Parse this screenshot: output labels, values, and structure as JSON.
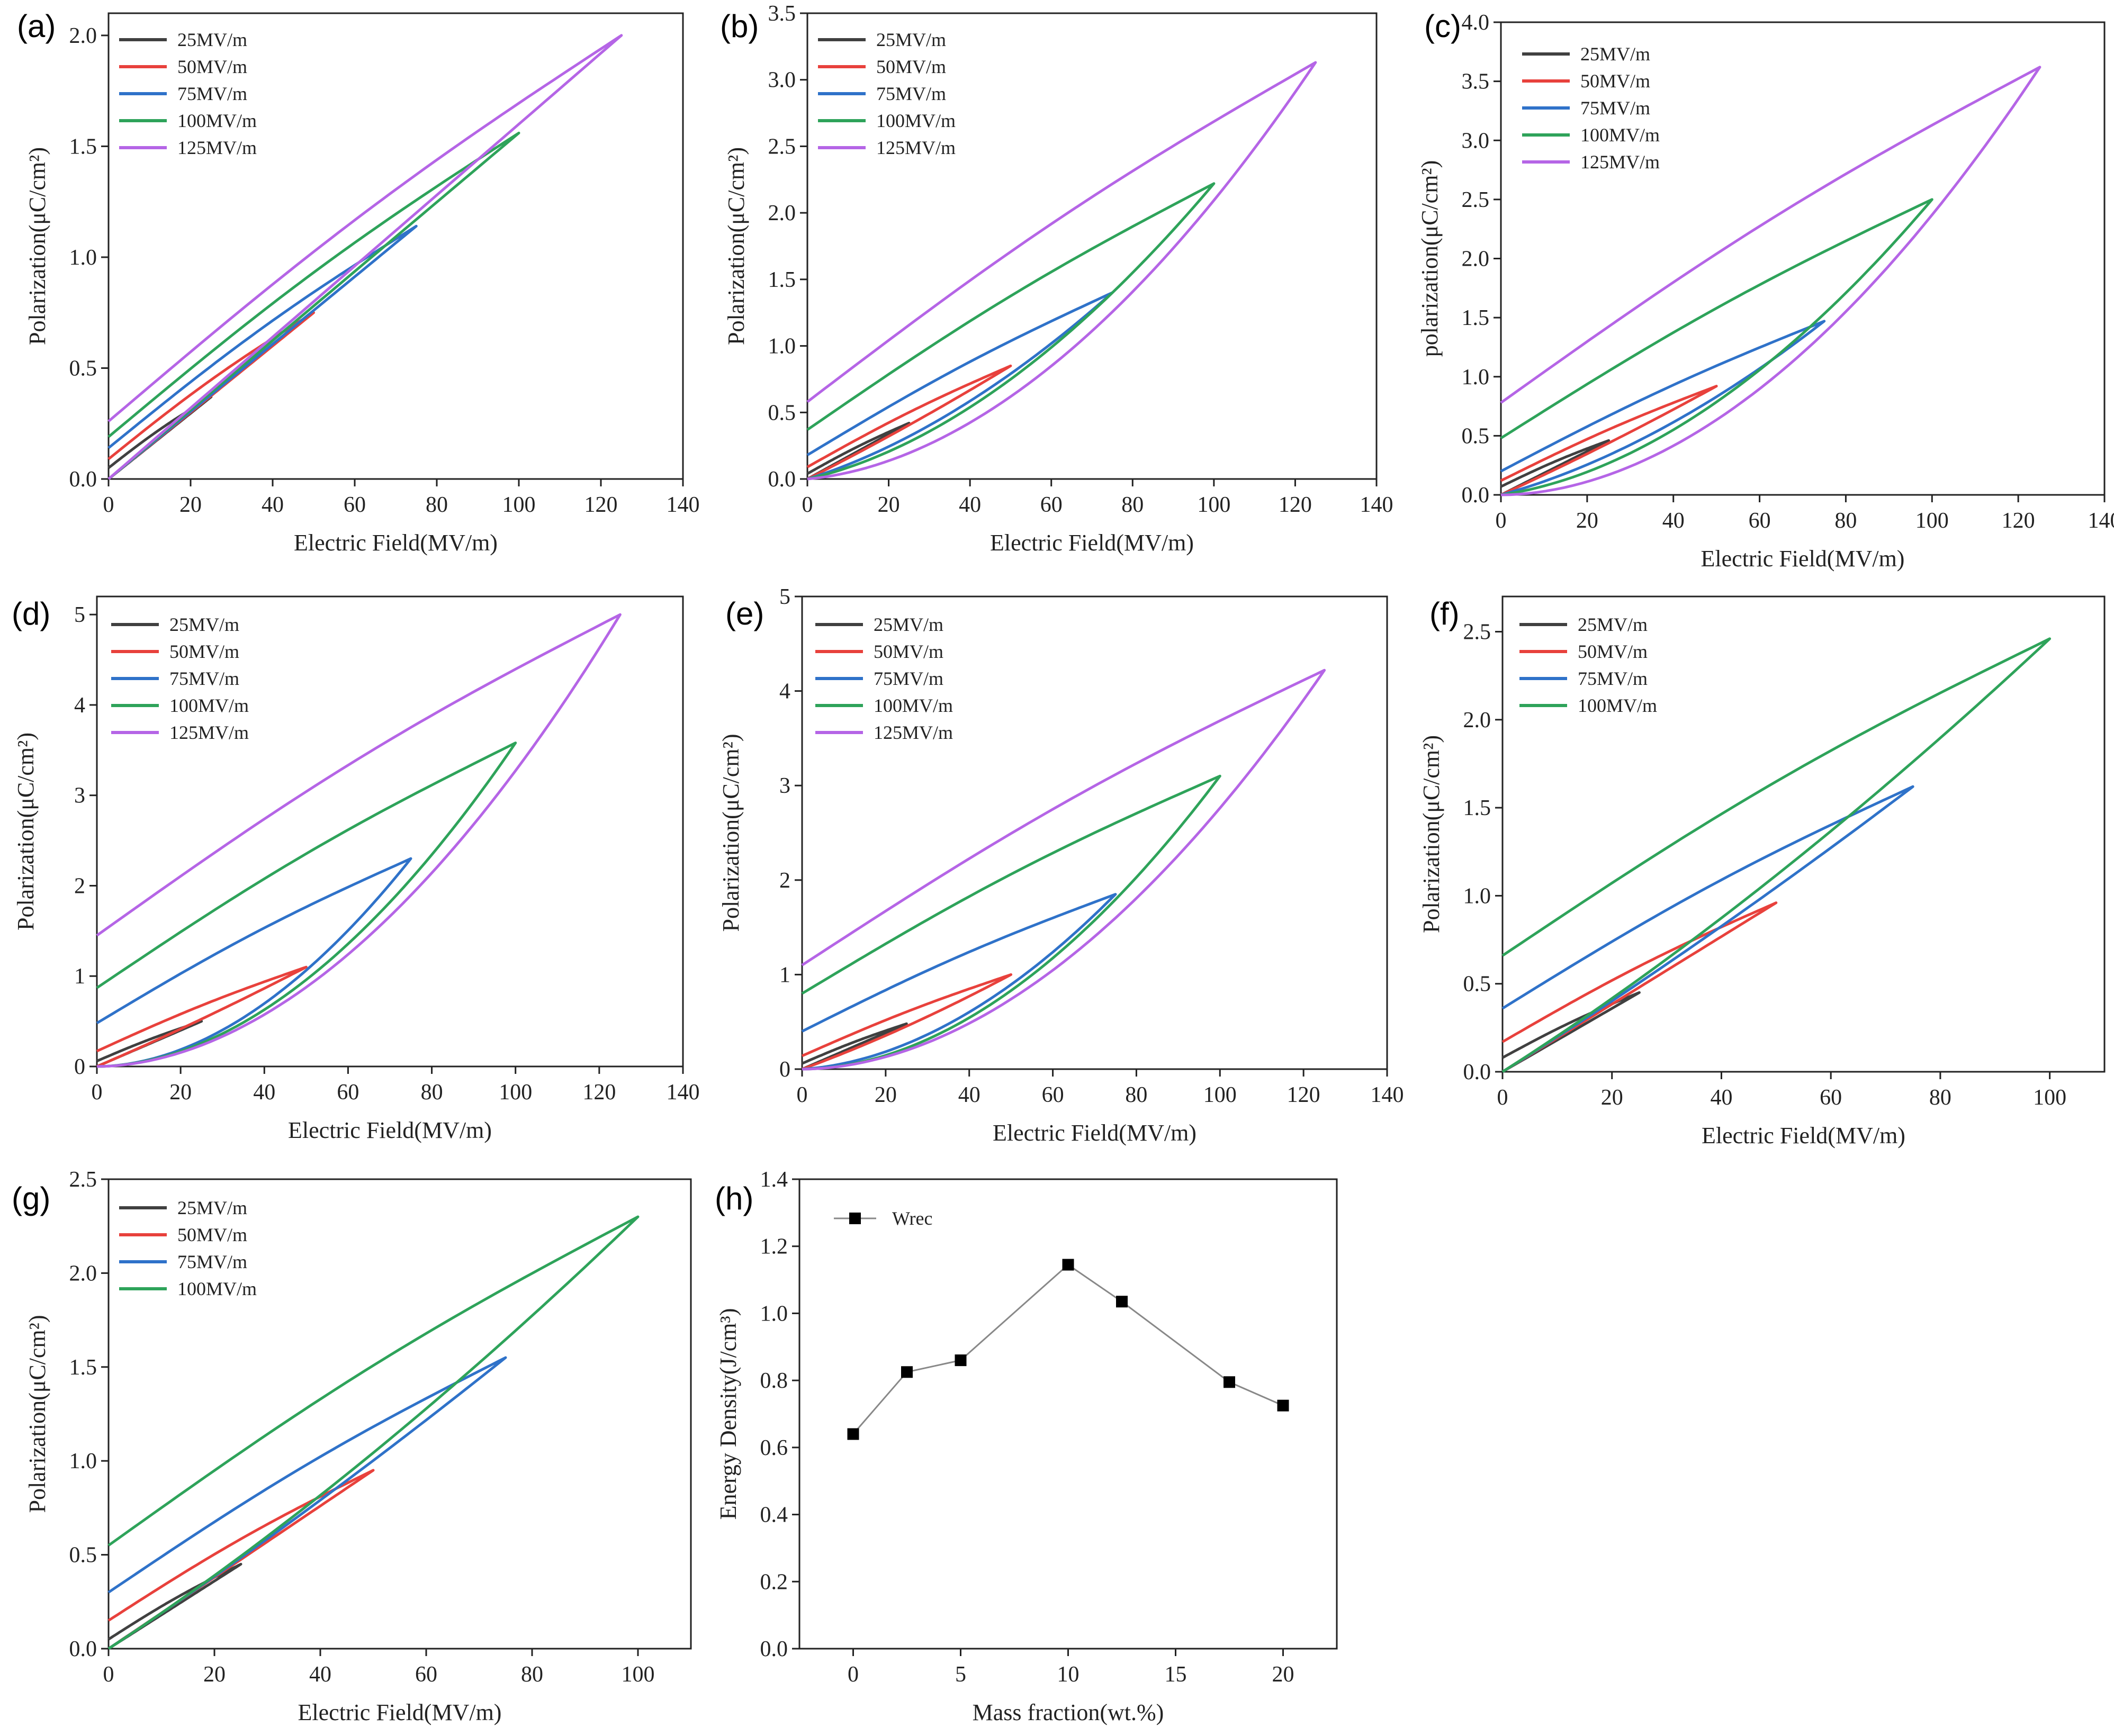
{
  "colors": {
    "25MV/m": "#404040",
    "50MV/m": "#e8413c",
    "75MV/m": "#2f72c9",
    "100MV/m": "#2ea35a",
    "125MV/m": "#b565e6",
    "energy": "#888888",
    "marker": "#000000"
  },
  "chart_data": [
    {
      "type": "line",
      "panel": "(a)",
      "xlabel": "Electric Field(MV/m)",
      "ylabel": "Polarization(μC/cm²)",
      "xlim": [
        0,
        140
      ],
      "ylim": [
        0,
        2.1
      ],
      "xticks": [
        "0",
        "20",
        "40",
        "60",
        "80",
        "100",
        "120",
        "140"
      ],
      "yticks": [
        "0.0",
        "0.5",
        "1.0",
        "1.5",
        "2.0"
      ],
      "legend": [
        "25MV/m",
        "50MV/m",
        "75MV/m",
        "100MV/m",
        "125MV/m"
      ],
      "series": [
        {
          "name": "25MV/m",
          "emax": 25,
          "pmax": 0.37,
          "pr": 0.05,
          "bend": 0.0
        },
        {
          "name": "50MV/m",
          "emax": 50,
          "pmax": 0.75,
          "pr": 0.09,
          "bend": 0.0
        },
        {
          "name": "75MV/m",
          "emax": 75,
          "pmax": 1.14,
          "pr": 0.14,
          "bend": 0.0
        },
        {
          "name": "100MV/m",
          "emax": 100,
          "pmax": 1.56,
          "pr": 0.19,
          "bend": 0.0
        },
        {
          "name": "125MV/m",
          "emax": 125,
          "pmax": 2.0,
          "pr": 0.26,
          "bend": 0.0
        }
      ]
    },
    {
      "type": "line",
      "panel": "(b)",
      "xlabel": "Electric Field(MV/m)",
      "ylabel": "Polarization(μC/cm²)",
      "xlim": [
        0,
        140
      ],
      "ylim": [
        0,
        3.5
      ],
      "xticks": [
        "0",
        "20",
        "40",
        "60",
        "80",
        "100",
        "120",
        "140"
      ],
      "yticks": [
        "0.0",
        "0.5",
        "1.0",
        "1.5",
        "2.0",
        "2.5",
        "3.0",
        "3.5"
      ],
      "legend": [
        "25MV/m",
        "50MV/m",
        "75MV/m",
        "100MV/m",
        "125MV/m"
      ],
      "series": [
        {
          "name": "25MV/m",
          "emax": 25,
          "pmax": 0.42,
          "pr": 0.04,
          "bend": 0.0
        },
        {
          "name": "50MV/m",
          "emax": 50,
          "pmax": 0.85,
          "pr": 0.09,
          "bend": 0.1
        },
        {
          "name": "75MV/m",
          "emax": 75,
          "pmax": 1.4,
          "pr": 0.18,
          "bend": 0.5
        },
        {
          "name": "100MV/m",
          "emax": 100,
          "pmax": 2.22,
          "pr": 0.37,
          "bend": 0.7
        },
        {
          "name": "125MV/m",
          "emax": 125,
          "pmax": 3.13,
          "pr": 0.58,
          "bend": 0.9
        }
      ]
    },
    {
      "type": "line",
      "panel": "(c)",
      "xlabel": "Electric Field(MV/m)",
      "ylabel": "polarization(μC/cm²)",
      "xlim": [
        0,
        140
      ],
      "ylim": [
        0,
        4.0
      ],
      "xticks": [
        "0",
        "20",
        "40",
        "60",
        "80",
        "100",
        "120",
        "140"
      ],
      "yticks": [
        "0.0",
        "0.5",
        "1.0",
        "1.5",
        "2.0",
        "2.5",
        "3.0",
        "3.5",
        "4.0"
      ],
      "legend": [
        "25MV/m",
        "50MV/m",
        "75MV/m",
        "100MV/m",
        "125MV/m"
      ],
      "series": [
        {
          "name": "25MV/m",
          "emax": 25,
          "pmax": 0.46,
          "pr": 0.07,
          "bend": 0.0
        },
        {
          "name": "50MV/m",
          "emax": 50,
          "pmax": 0.92,
          "pr": 0.12,
          "bend": 0.1
        },
        {
          "name": "75MV/m",
          "emax": 75,
          "pmax": 1.47,
          "pr": 0.2,
          "bend": 0.5
        },
        {
          "name": "100MV/m",
          "emax": 100,
          "pmax": 2.5,
          "pr": 0.48,
          "bend": 0.8
        },
        {
          "name": "125MV/m",
          "emax": 125,
          "pmax": 3.62,
          "pr": 0.78,
          "bend": 1.0
        }
      ]
    },
    {
      "type": "line",
      "panel": "(d)",
      "xlabel": "Electric Field(MV/m)",
      "ylabel": "Polarization(μC/cm²)",
      "xlim": [
        0,
        140
      ],
      "ylim": [
        0,
        5.2
      ],
      "xticks": [
        "0",
        "20",
        "40",
        "60",
        "80",
        "100",
        "120",
        "140"
      ],
      "yticks": [
        "0",
        "1",
        "2",
        "3",
        "4",
        "5"
      ],
      "legend": [
        "25MV/m",
        "50MV/m",
        "75MV/m",
        "100MV/m",
        "125MV/m"
      ],
      "series": [
        {
          "name": "25MV/m",
          "emax": 25,
          "pmax": 0.5,
          "pr": 0.06,
          "bend": 0.0
        },
        {
          "name": "50MV/m",
          "emax": 50,
          "pmax": 1.1,
          "pr": 0.17,
          "bend": 0.1
        },
        {
          "name": "75MV/m",
          "emax": 75,
          "pmax": 2.3,
          "pr": 0.48,
          "bend": 1.0
        },
        {
          "name": "100MV/m",
          "emax": 100,
          "pmax": 3.58,
          "pr": 0.87,
          "bend": 1.0
        },
        {
          "name": "125MV/m",
          "emax": 125,
          "pmax": 5.0,
          "pr": 1.45,
          "bend": 1.0
        }
      ]
    },
    {
      "type": "line",
      "panel": "(e)",
      "xlabel": "Electric Field(MV/m)",
      "ylabel": "Polarization(μC/cm²)",
      "xlim": [
        0,
        140
      ],
      "ylim": [
        0,
        5
      ],
      "xticks": [
        "0",
        "20",
        "40",
        "60",
        "80",
        "100",
        "120",
        "140"
      ],
      "yticks": [
        "0",
        "1",
        "2",
        "3",
        "4",
        "5"
      ],
      "legend": [
        "25MV/m",
        "50MV/m",
        "75MV/m",
        "100MV/m",
        "125MV/m"
      ],
      "series": [
        {
          "name": "25MV/m",
          "emax": 25,
          "pmax": 0.48,
          "pr": 0.06,
          "bend": 0.0
        },
        {
          "name": "50MV/m",
          "emax": 50,
          "pmax": 1.0,
          "pr": 0.14,
          "bend": 0.2
        },
        {
          "name": "75MV/m",
          "emax": 75,
          "pmax": 1.85,
          "pr": 0.4,
          "bend": 0.9
        },
        {
          "name": "100MV/m",
          "emax": 100,
          "pmax": 3.1,
          "pr": 0.8,
          "bend": 1.0
        },
        {
          "name": "125MV/m",
          "emax": 125,
          "pmax": 4.22,
          "pr": 1.1,
          "bend": 1.0
        }
      ]
    },
    {
      "type": "line",
      "panel": "(f)",
      "xlabel": "Electric Field(MV/m)",
      "ylabel": "Polarization(μC/cm²)",
      "xlim": [
        0,
        110
      ],
      "ylim": [
        0,
        2.7
      ],
      "xticks": [
        "0",
        "20",
        "40",
        "60",
        "80",
        "100"
      ],
      "yticks": [
        "0.0",
        "0.5",
        "1.0",
        "1.5",
        "2.0",
        "2.5"
      ],
      "legend": [
        "25MV/m",
        "50MV/m",
        "75MV/m",
        "100MV/m"
      ],
      "series": [
        {
          "name": "25MV/m",
          "emax": 25,
          "pmax": 0.45,
          "pr": 0.08,
          "bend": 0.0
        },
        {
          "name": "50MV/m",
          "emax": 50,
          "pmax": 0.96,
          "pr": 0.17,
          "bend": 0.0
        },
        {
          "name": "75MV/m",
          "emax": 75,
          "pmax": 1.62,
          "pr": 0.36,
          "bend": 0.1
        },
        {
          "name": "100MV/m",
          "emax": 100,
          "pmax": 2.46,
          "pr": 0.66,
          "bend": 0.2
        }
      ]
    },
    {
      "type": "line",
      "panel": "(g)",
      "xlabel": "Electric Field(MV/m)",
      "ylabel": "Polarization(μC/cm²)",
      "xlim": [
        0,
        110
      ],
      "ylim": [
        0,
        2.5
      ],
      "xticks": [
        "0",
        "20",
        "40",
        "60",
        "80",
        "100"
      ],
      "yticks": [
        "0.0",
        "0.5",
        "1.0",
        "1.5",
        "2.0",
        "2.5"
      ],
      "legend": [
        "25MV/m",
        "50MV/m",
        "75MV/m",
        "100MV/m"
      ],
      "series": [
        {
          "name": "25MV/m",
          "emax": 25,
          "pmax": 0.45,
          "pr": 0.05,
          "bend": 0.0
        },
        {
          "name": "50MV/m",
          "emax": 50,
          "pmax": 0.95,
          "pr": 0.15,
          "bend": 0.0
        },
        {
          "name": "75MV/m",
          "emax": 75,
          "pmax": 1.55,
          "pr": 0.3,
          "bend": 0.1
        },
        {
          "name": "100MV/m",
          "emax": 100,
          "pmax": 2.3,
          "pr": 0.55,
          "bend": 0.2
        }
      ]
    },
    {
      "type": "line",
      "panel": "(h)",
      "xlabel": "Mass fraction(wt.%)",
      "ylabel": "Energy Density(J/cm³)",
      "xlim": [
        -2.5,
        22.5
      ],
      "ylim": [
        0,
        1.4
      ],
      "xticks": [
        "0",
        "5",
        "10",
        "15",
        "20"
      ],
      "yticks": [
        "0.0",
        "0.2",
        "0.4",
        "0.6",
        "0.8",
        "1.0",
        "1.2",
        "1.4"
      ],
      "legend": [
        "Wrec"
      ],
      "series": [
        {
          "name": "Wrec",
          "x": [
            0,
            2.5,
            5,
            10,
            12.5,
            17.5,
            20
          ],
          "y": [
            0.64,
            0.825,
            0.86,
            1.145,
            1.035,
            0.795,
            0.725
          ]
        }
      ]
    }
  ]
}
